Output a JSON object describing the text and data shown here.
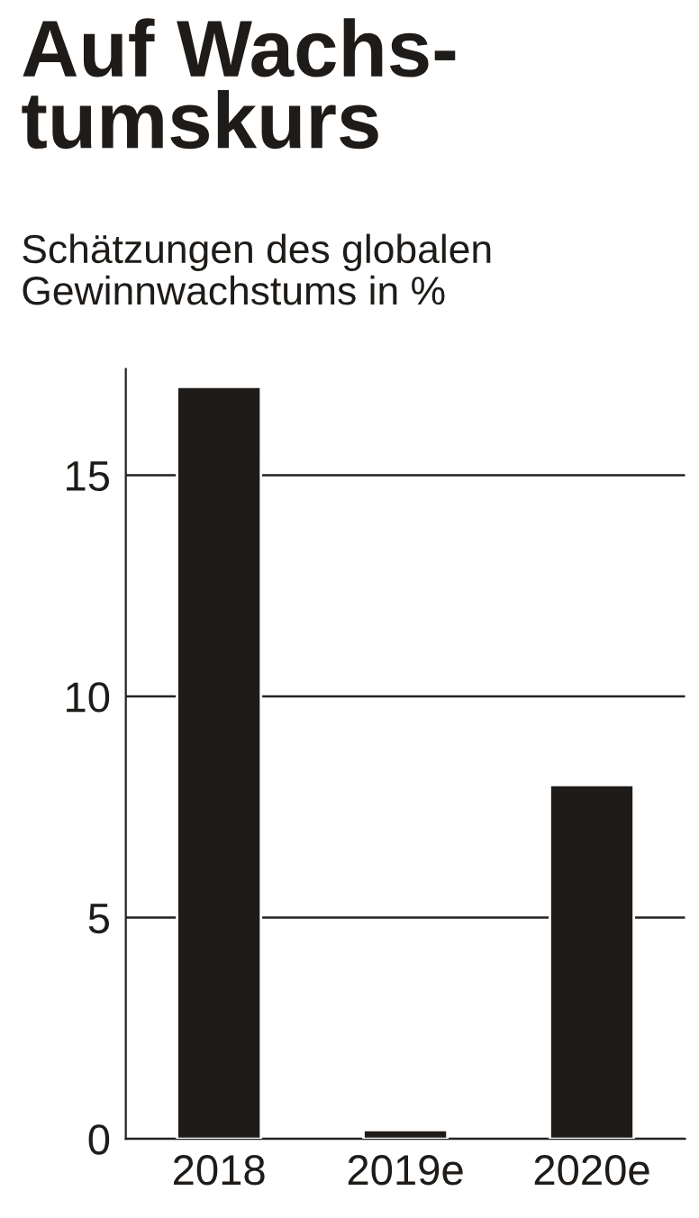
{
  "chart_data": {
    "type": "bar",
    "title": "Auf Wachs-\ntumskurs",
    "subtitle": "Schätzungen des globalen\nGewinnwachstums in %",
    "categories": [
      "2018",
      "2019e",
      "2020e"
    ],
    "values": [
      17,
      0.2,
      8
    ],
    "color": "#1e1b18",
    "ylim": [
      0,
      17.4
    ],
    "yticks": [
      0,
      5,
      10,
      15
    ],
    "grid": "y"
  }
}
